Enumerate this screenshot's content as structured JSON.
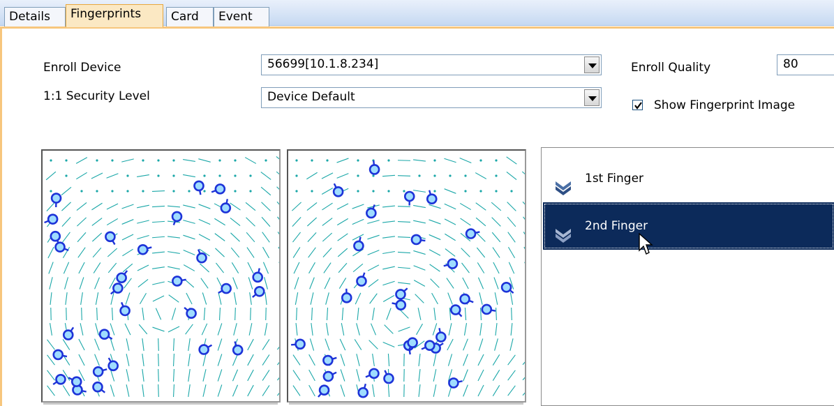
{
  "tabs": [
    {
      "label": "Details"
    },
    {
      "label": "Fingerprints"
    },
    {
      "label": "Card"
    },
    {
      "label": "Event"
    }
  ],
  "form": {
    "enroll_device_label": "Enroll Device",
    "enroll_device_value": "56699[10.1.8.234]",
    "security_level_label": "1:1 Security Level",
    "security_level_value": "Device Default",
    "enroll_quality_label": "Enroll Quality",
    "enroll_quality_value": "80",
    "show_image_label": "Show Fingerprint Image",
    "show_image_checked": true
  },
  "fingers": [
    {
      "label": "1st Finger",
      "selected": false
    },
    {
      "label": "2nd Finger",
      "selected": true
    }
  ],
  "colors": {
    "selection": "#0c2a5a",
    "ridge": "#1aa7a8",
    "minutia": "#1d33d8",
    "tab_active": "#fbe8c3"
  },
  "icons": [
    "double-chevron-down-icon",
    "mouse-pointer-icon",
    "checkbox-checked-icon",
    "dropdown-arrow-icon"
  ]
}
